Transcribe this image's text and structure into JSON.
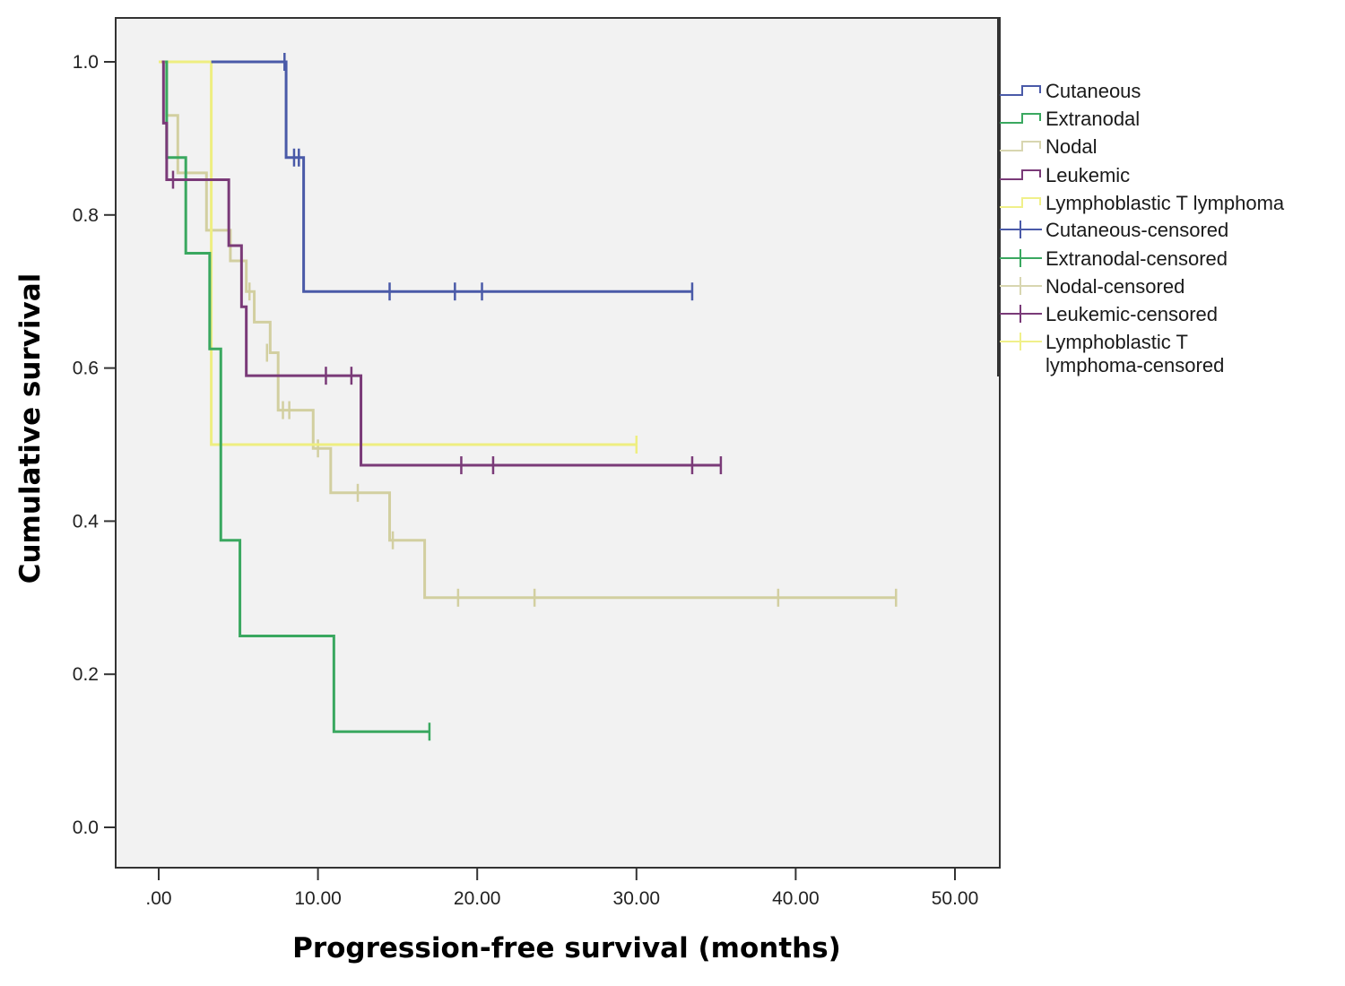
{
  "chart_data": {
    "type": "line",
    "subtype": "kaplan-meier",
    "title": "",
    "xlabel": "Progression-free survival (months)",
    "ylabel": "Cumulative survival",
    "xlim": [
      0,
      50
    ],
    "ylim": [
      0,
      1.0
    ],
    "x_ticks": [
      ".00",
      "10.00",
      "20.00",
      "30.00",
      "40.00",
      "50.00"
    ],
    "x_tick_values": [
      0,
      10,
      20,
      30,
      40,
      50
    ],
    "y_ticks": [
      "0.0",
      "0.2",
      "0.4",
      "0.6",
      "0.8",
      "1.0"
    ],
    "y_tick_values": [
      0,
      0.2,
      0.4,
      0.6,
      0.8,
      1.0
    ],
    "grid": false,
    "legend_position": "right",
    "legend": [
      {
        "label": "Cutaneous",
        "kind": "step",
        "color": "#4a5aa8"
      },
      {
        "label": "Extranodal",
        "kind": "step",
        "color": "#3aa860"
      },
      {
        "label": "Nodal",
        "kind": "step",
        "color": "#d8d6b0"
      },
      {
        "label": "Leukemic",
        "kind": "step",
        "color": "#7a3a78"
      },
      {
        "label": "Lymphoblastic T lymphoma",
        "kind": "step",
        "color": "#f0f08a"
      },
      {
        "label": "Cutaneous-censored",
        "kind": "censor",
        "color": "#4a5aa8"
      },
      {
        "label": "Extranodal-censored",
        "kind": "censor",
        "color": "#3aa860"
      },
      {
        "label": "Nodal-censored",
        "kind": "censor",
        "color": "#d8d6b0"
      },
      {
        "label": "Leukemic-censored",
        "kind": "censor",
        "color": "#7a3a78"
      },
      {
        "label": "Lymphoblastic T",
        "label2": "lymphoma-censored",
        "kind": "censor",
        "color": "#f0f08a"
      }
    ],
    "series": [
      {
        "name": "Nodal",
        "color": "#d2cfa0",
        "steps": [
          [
            0.1,
            1.0
          ],
          [
            0.5,
            0.93
          ],
          [
            1.2,
            0.855
          ],
          [
            3.0,
            0.78
          ],
          [
            4.5,
            0.74
          ],
          [
            5.5,
            0.7
          ],
          [
            6.0,
            0.66
          ],
          [
            7.0,
            0.62
          ],
          [
            7.5,
            0.545
          ],
          [
            9.7,
            0.495
          ],
          [
            10.8,
            0.437
          ],
          [
            14.5,
            0.375
          ],
          [
            16.7,
            0.3
          ]
        ],
        "end": 46.3,
        "censored": [
          [
            5.2,
            0.74
          ],
          [
            5.7,
            0.7
          ],
          [
            6.8,
            0.62
          ],
          [
            7.8,
            0.545
          ],
          [
            8.2,
            0.545
          ],
          [
            10.0,
            0.495
          ],
          [
            12.5,
            0.437
          ],
          [
            14.7,
            0.375
          ],
          [
            18.8,
            0.3
          ],
          [
            23.6,
            0.3
          ],
          [
            38.9,
            0.3
          ],
          [
            46.3,
            0.3
          ]
        ]
      },
      {
        "name": "Lymphoblastic T lymphoma",
        "color": "#eeee80",
        "steps": [
          [
            0.0,
            1.0
          ],
          [
            3.3,
            0.5
          ]
        ],
        "end": 30.0,
        "censored": [
          [
            30.0,
            0.5
          ]
        ]
      },
      {
        "name": "Extranodal",
        "color": "#3aa860",
        "steps": [
          [
            0.4,
            1.0
          ],
          [
            0.5,
            0.875
          ],
          [
            1.7,
            0.75
          ],
          [
            3.2,
            0.625
          ],
          [
            3.9,
            0.375
          ],
          [
            5.1,
            0.25
          ],
          [
            11.0,
            0.125
          ]
        ],
        "end": 17.0,
        "censored": [
          [
            17.0,
            0.125
          ]
        ]
      },
      {
        "name": "Leukemic",
        "color": "#7a3a78",
        "steps": [
          [
            0.2,
            1.0
          ],
          [
            0.3,
            0.92
          ],
          [
            0.5,
            0.846
          ],
          [
            4.4,
            0.76
          ],
          [
            5.2,
            0.68
          ],
          [
            5.5,
            0.59
          ],
          [
            12.7,
            0.473
          ]
        ],
        "end": 35.3,
        "censored": [
          [
            0.9,
            0.846
          ],
          [
            10.5,
            0.59
          ],
          [
            12.1,
            0.59
          ],
          [
            19.0,
            0.473
          ],
          [
            21.0,
            0.473
          ],
          [
            33.5,
            0.473
          ],
          [
            35.3,
            0.473
          ]
        ]
      },
      {
        "name": "Cutaneous",
        "color": "#4a5aa8",
        "steps": [
          [
            3.3,
            1.0
          ],
          [
            8.0,
            0.875
          ],
          [
            9.1,
            0.7
          ]
        ],
        "end": 33.5,
        "censored": [
          [
            7.9,
            1.0
          ],
          [
            8.5,
            0.875
          ],
          [
            8.8,
            0.875
          ],
          [
            14.5,
            0.7
          ],
          [
            18.6,
            0.7
          ],
          [
            20.3,
            0.7
          ],
          [
            33.5,
            0.7
          ]
        ]
      }
    ]
  }
}
